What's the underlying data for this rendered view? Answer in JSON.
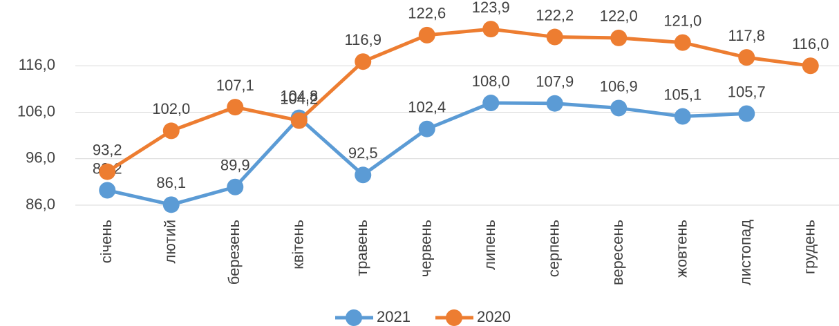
{
  "chart_data": {
    "type": "line",
    "categories": [
      "січень",
      "лютий",
      "березень",
      "квітень",
      "травень",
      "червень",
      "липень",
      "серпень",
      "вересень",
      "жовтень",
      "листопад",
      "грудень"
    ],
    "series": [
      {
        "name": "2021",
        "color": "#5b9bd5",
        "values": [
          89.2,
          86.1,
          89.9,
          104.8,
          92.5,
          102.4,
          108.0,
          107.9,
          106.9,
          105.1,
          105.7,
          null
        ],
        "value_labels": [
          "89,2",
          "86,1",
          "89,9",
          "104,8",
          "92,5",
          "102,4",
          "108,0",
          "107,9",
          "106,9",
          "105,1",
          "105,7",
          null
        ]
      },
      {
        "name": "2020",
        "color": "#ed7d31",
        "values": [
          93.2,
          102.0,
          107.1,
          104.2,
          116.9,
          122.6,
          123.9,
          122.2,
          122.0,
          121.0,
          117.8,
          116.0
        ],
        "value_labels": [
          "93,2",
          "102,0",
          "107,1",
          "104,2",
          "116,9",
          "122,6",
          "123,9",
          "122,2",
          "122,0",
          "121,0",
          "117,8",
          "116,0"
        ]
      }
    ],
    "ylim": [
      86,
      126
    ],
    "yticks": [
      {
        "value": 86,
        "label": "86,0"
      },
      {
        "value": 96,
        "label": "96,0"
      },
      {
        "value": 106,
        "label": "106,0"
      },
      {
        "value": 116,
        "label": "116,0"
      }
    ],
    "grid": true,
    "legend": "bottom"
  }
}
